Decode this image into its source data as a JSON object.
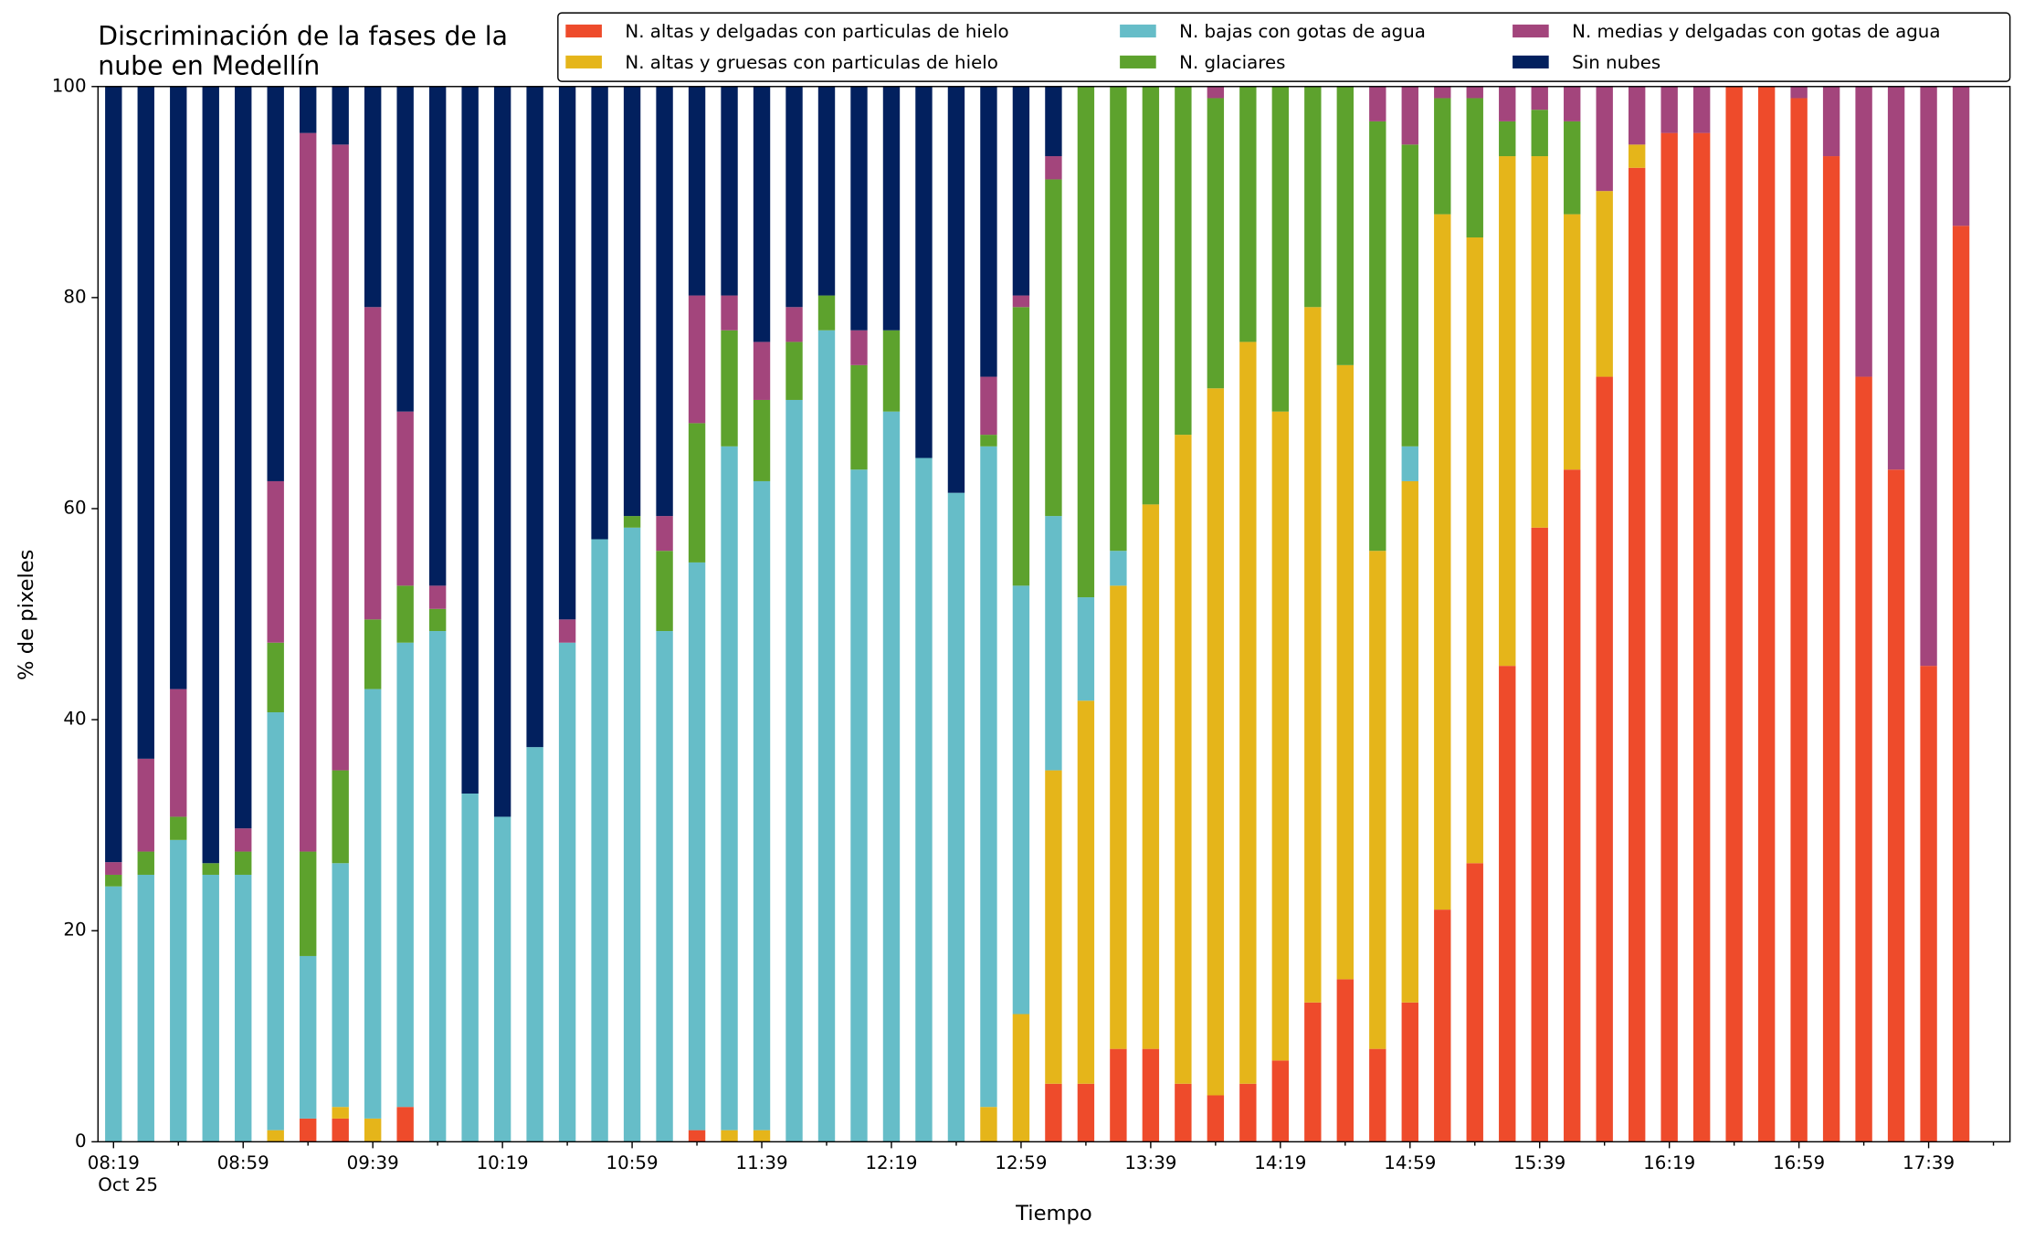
{
  "chart_data": {
    "type": "stacked_bar",
    "title": [
      "Discriminación de la fases de la",
      "nube en Medellín"
    ],
    "x_label": "Tiempo",
    "y_label": "% de pixeles",
    "x_date_label": "Oct 25",
    "categories": [
      "08:19",
      null,
      null,
      null,
      "08:59",
      null,
      null,
      null,
      "09:39",
      null,
      null,
      null,
      "10:19",
      null,
      null,
      null,
      "10:59",
      null,
      null,
      null,
      "11:39",
      null,
      null,
      null,
      "12:19",
      null,
      null,
      null,
      "12:59",
      null,
      null,
      null,
      "13:39",
      null,
      null,
      null,
      "14:19",
      null,
      null,
      null,
      "14:59",
      null,
      null,
      null,
      "15:39",
      null,
      null,
      null,
      "16:19",
      null,
      null,
      null,
      "16:59",
      null,
      null,
      null,
      "17:39",
      null
    ],
    "ylim": [
      0,
      100
    ],
    "yticks": [
      0,
      20,
      40,
      60,
      80,
      100
    ],
    "legend": "top-right",
    "series": [
      {
        "name": "N. altas y delgadas con particulas de hielo",
        "color": "#ee4b2b",
        "values": [
          0,
          0,
          0,
          0,
          0,
          0,
          2.2,
          2.2,
          0,
          3.3,
          0,
          0,
          0,
          0,
          0,
          0,
          0,
          0,
          1.1,
          0,
          0,
          0,
          0,
          0,
          0,
          0,
          0,
          0,
          0,
          5.5,
          5.5,
          8.8,
          8.8,
          5.5,
          4.4,
          5.5,
          7.7,
          13.2,
          15.4,
          8.8,
          13.2,
          22,
          26.4,
          45.1,
          58.2,
          63.7,
          72.5,
          92.3,
          95.6,
          95.6,
          100,
          100,
          98.9,
          93.4,
          72.5,
          63.7,
          45.1,
          86.8
        ]
      },
      {
        "name": "N. altas y gruesas con particulas de hielo",
        "color": "#e5b51a",
        "values": [
          0,
          0,
          0,
          0,
          0,
          1.1,
          0,
          1.1,
          2.2,
          0,
          0,
          0,
          0,
          0,
          0,
          0,
          0,
          0,
          0,
          1.1,
          1.1,
          0,
          0,
          0,
          0,
          0,
          0,
          3.3,
          12.1,
          29.7,
          36.3,
          43.9,
          51.6,
          61.5,
          67,
          70.3,
          61.5,
          65.9,
          58.2,
          47.2,
          49.4,
          65.9,
          59.3,
          48.3,
          35.2,
          24.2,
          17.6,
          2.2,
          0,
          0,
          0,
          0,
          0,
          0,
          0,
          0,
          0,
          0
        ]
      },
      {
        "name": "N. bajas con gotas de agua",
        "color": "#66bdc8",
        "values": [
          24.2,
          25.3,
          28.6,
          25.3,
          25.3,
          39.6,
          15.4,
          23.1,
          40.7,
          44,
          48.4,
          33,
          30.8,
          37.4,
          47.3,
          57.1,
          58.2,
          48.4,
          53.8,
          64.8,
          61.5,
          70.3,
          76.9,
          63.7,
          69.2,
          64.8,
          61.5,
          62.6,
          40.6,
          24.1,
          9.8,
          3.3,
          0,
          0,
          0,
          0,
          0,
          0,
          0,
          0,
          3.3,
          0,
          0,
          0,
          0,
          0,
          0,
          0,
          0,
          0,
          0,
          0,
          0,
          0,
          0,
          0,
          0,
          0
        ]
      },
      {
        "name": "N. glaciares",
        "color": "#5da22d",
        "values": [
          1.1,
          2.2,
          2.2,
          1.1,
          2.2,
          6.6,
          9.9,
          8.8,
          6.6,
          5.4,
          2.1,
          0,
          0,
          0,
          0,
          0,
          1.1,
          7.6,
          13.2,
          11,
          7.7,
          5.5,
          3.3,
          9.9,
          7.7,
          0,
          0,
          1.1,
          26.4,
          31.9,
          48.4,
          44,
          39.6,
          33,
          27.5,
          24.2,
          30.8,
          20.9,
          26.4,
          40.7,
          28.6,
          11,
          13.2,
          3.3,
          4.4,
          8.8,
          0,
          0,
          0,
          0,
          0,
          0,
          0,
          0,
          0,
          0,
          0,
          0
        ]
      },
      {
        "name": "N. medias y delgadas con gotas de agua",
        "color": "#a3457c",
        "values": [
          1.2,
          8.8,
          12.1,
          0,
          2.2,
          15.3,
          68.1,
          59.3,
          29.6,
          16.5,
          2.2,
          0,
          0,
          0,
          2.2,
          0,
          0,
          3.3,
          12.1,
          3.3,
          5.5,
          3.3,
          0,
          3.3,
          0,
          0,
          0,
          5.5,
          1.1,
          2.2,
          0,
          0,
          0,
          0,
          1.1,
          0,
          0,
          0,
          0,
          3.3,
          5.5,
          1.1,
          1.1,
          3.3,
          2.2,
          3.3,
          9.9,
          5.5,
          4.4,
          4.4,
          0,
          0,
          1.1,
          6.6,
          27.5,
          36.3,
          54.9,
          13.2
        ]
      },
      {
        "name": "Sin nubes",
        "color": "#02205e",
        "values": [
          73.5,
          63.7,
          57.1,
          73.6,
          70.3,
          37.4,
          4.4,
          5.5,
          20.9,
          30.8,
          47.3,
          67,
          69.2,
          62.6,
          50.5,
          42.9,
          40.7,
          40.7,
          19.8,
          19.8,
          24.2,
          20.9,
          19.8,
          23.1,
          23.1,
          35.2,
          38.5,
          27.5,
          19.8,
          6.6,
          0,
          0,
          0,
          0,
          0,
          0,
          0,
          0,
          0,
          0,
          0,
          0,
          0,
          0,
          0,
          0,
          0,
          0,
          0,
          0,
          0,
          0,
          0,
          0,
          0,
          0,
          0,
          0
        ]
      }
    ]
  }
}
